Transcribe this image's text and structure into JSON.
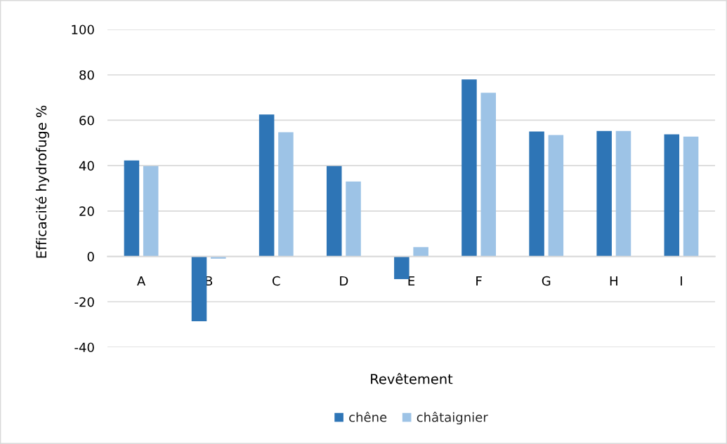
{
  "chart_data": {
    "type": "bar",
    "xlabel": "Revêtement",
    "ylabel": "Efficacité hydrofuge %",
    "categories": [
      "A",
      "B",
      "C",
      "D",
      "E",
      "F",
      "G",
      "H",
      "I"
    ],
    "series": [
      {
        "name": "chêne",
        "color": "#2e75b6",
        "values": [
          42.3,
          -28.6,
          62.5,
          39.8,
          -10.0,
          78.0,
          55.0,
          55.3,
          53.8
        ]
      },
      {
        "name": "châtaignier",
        "color": "#9dc3e6",
        "values": [
          39.8,
          -1.0,
          54.7,
          33.0,
          4.1,
          72.1,
          53.5,
          55.3,
          52.8
        ]
      }
    ],
    "ylim": [
      -40,
      100
    ],
    "yticks": [
      -40,
      -20,
      0,
      20,
      40,
      60,
      80,
      100
    ],
    "grid": "y",
    "legend": "bottom"
  }
}
